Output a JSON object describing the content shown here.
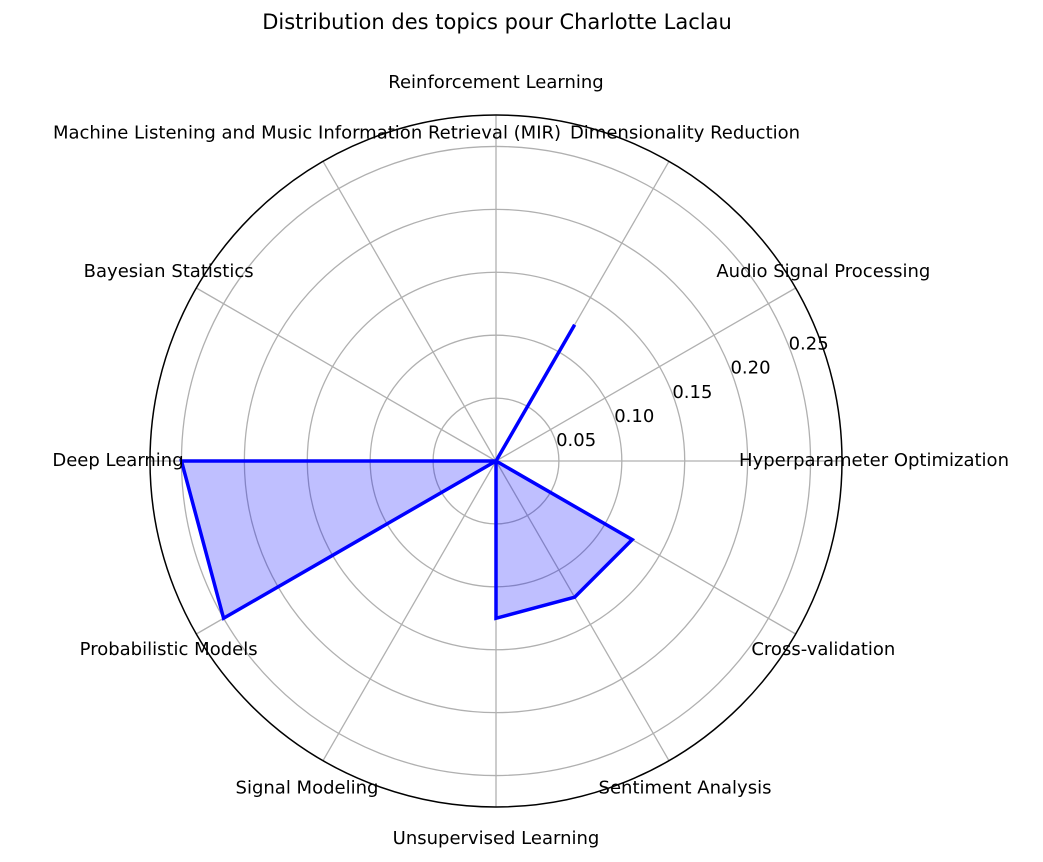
{
  "chart_data": {
    "type": "radar",
    "title": "Distribution des topics pour Charlotte Laclau",
    "categories": [
      "Hyperparameter Optimization",
      "Audio Signal Processing",
      "Dimensionality Reduction",
      "Reinforcement Learning",
      "Machine Listening and Music Information Retrieval (MIR)",
      "Bayesian Statistics",
      "Deep Learning",
      "Probabilistic Models",
      "Signal Modeling",
      "Unsupervised Learning",
      "Sentiment Analysis",
      "Cross-validation"
    ],
    "values": [
      0.0,
      0.0,
      0.125,
      0.0,
      0.0,
      0.0,
      0.25,
      0.25,
      0.0,
      0.125,
      0.125,
      0.125
    ],
    "rlim": [
      0,
      0.275
    ],
    "rticks": [
      0.05,
      0.1,
      0.15,
      0.2,
      0.25
    ],
    "rtick_labels": [
      "0.05",
      "0.10",
      "0.15",
      "0.20",
      "0.25"
    ],
    "grid": true,
    "line_color": "#0000ff",
    "fill_color": "#0000ff",
    "fill_opacity": 0.25,
    "grid_color": "#b0b0b0"
  }
}
